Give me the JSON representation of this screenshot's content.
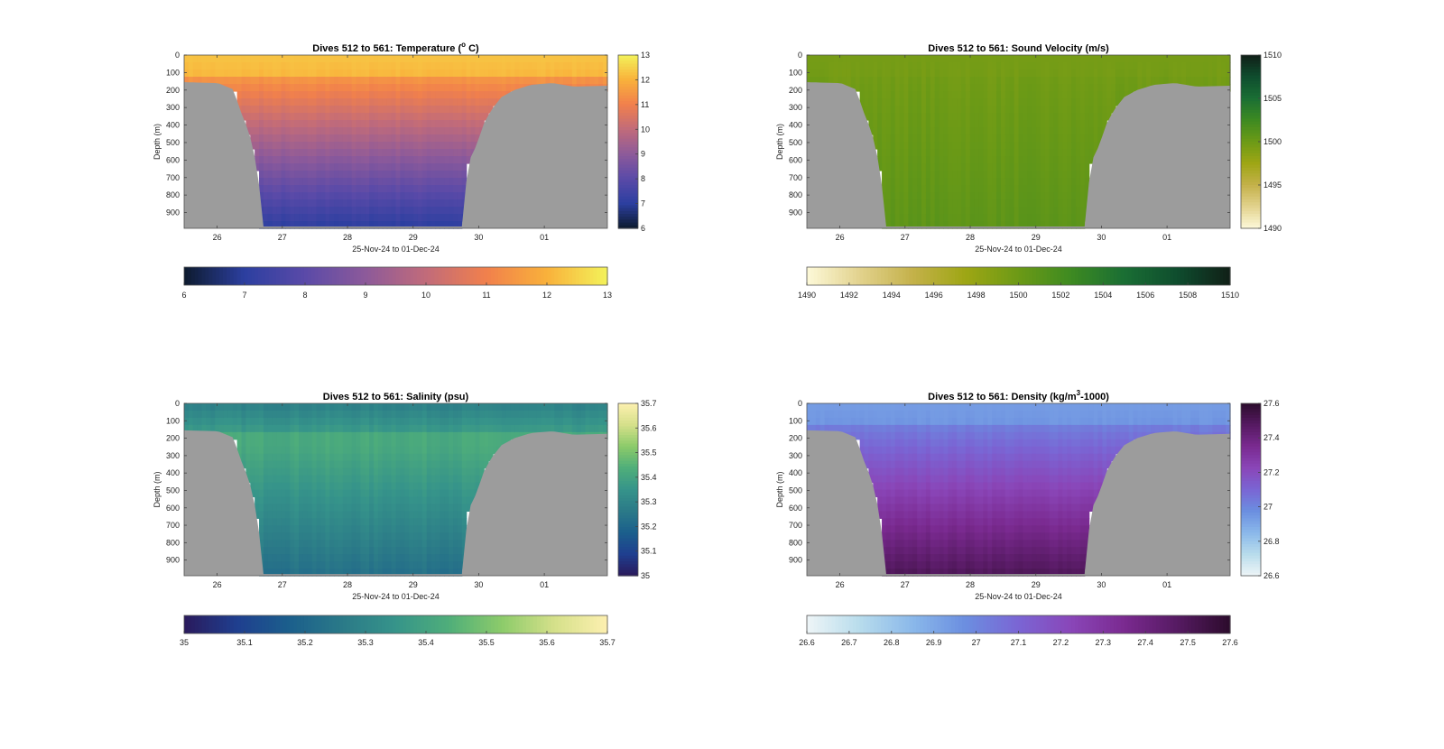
{
  "chart_data": [
    {
      "type": "heatmap",
      "title_prefix": "Dives 512 to 561: Temperature (",
      "title_sup": "o",
      "title_suffix": " C)",
      "xlabel": "25-Nov-24 to 01-Dec-24",
      "ylabel": "Depth (m)",
      "x_ticks": [
        "26",
        "27",
        "28",
        "29",
        "30",
        "01"
      ],
      "y_ticks": [
        "0",
        "100",
        "200",
        "300",
        "400",
        "500",
        "600",
        "700",
        "800",
        "900"
      ],
      "ylim": [
        0,
        990
      ],
      "clim": [
        6,
        13
      ],
      "right_colorbar_ticks": [
        "6",
        "7",
        "8",
        "9",
        "10",
        "11",
        "12",
        "13"
      ],
      "bottom_colorbar_ticks": [
        "6",
        "7",
        "8",
        "9",
        "10",
        "11",
        "12",
        "13"
      ],
      "surface_value": 12.3,
      "deep_value": 7.0,
      "colormap": [
        "#0d1b2e",
        "#2c3fa0",
        "#5a4aa8",
        "#8d5a9a",
        "#c16b7a",
        "#f1804c",
        "#f9b13b",
        "#f3f25a"
      ],
      "land_color": "#9c9c9c"
    },
    {
      "type": "heatmap",
      "title_prefix": "Dives 512 to 561: Sound Velocity (m/s)",
      "title_sup": "",
      "title_suffix": "",
      "xlabel": "25-Nov-24 to 01-Dec-24",
      "ylabel": "Depth (m)",
      "x_ticks": [
        "26",
        "27",
        "28",
        "29",
        "30",
        "01"
      ],
      "y_ticks": [
        "0",
        "100",
        "200",
        "300",
        "400",
        "500",
        "600",
        "700",
        "800",
        "900"
      ],
      "ylim": [
        0,
        990
      ],
      "clim": [
        1490,
        1510
      ],
      "right_colorbar_ticks": [
        "1490",
        "1495",
        "1500",
        "1505",
        "1510"
      ],
      "bottom_colorbar_ticks": [
        "1490",
        "1492",
        "1494",
        "1496",
        "1498",
        "1500",
        "1502",
        "1504",
        "1506",
        "1508",
        "1510"
      ],
      "surface_value": 1499.5,
      "deep_value": 1500.8,
      "colormap": [
        "#fdf9d9",
        "#e2d28d",
        "#c4b14a",
        "#9ea614",
        "#6c9a16",
        "#3d8a21",
        "#1a6e34",
        "#0f4d2e",
        "#101f17"
      ],
      "land_color": "#9c9c9c"
    },
    {
      "type": "heatmap",
      "title_prefix": "Dives 512 to 561: Salinity (psu)",
      "title_sup": "",
      "title_suffix": "",
      "xlabel": "25-Nov-24 to 01-Dec-24",
      "ylabel": "Depth (m)",
      "x_ticks": [
        "26",
        "27",
        "28",
        "29",
        "30",
        "01"
      ],
      "y_ticks": [
        "0",
        "100",
        "200",
        "300",
        "400",
        "500",
        "600",
        "700",
        "800",
        "900"
      ],
      "ylim": [
        0,
        990
      ],
      "clim": [
        35,
        35.7
      ],
      "right_colorbar_ticks": [
        "35",
        "35.1",
        "35.2",
        "35.3",
        "35.4",
        "35.5",
        "35.6",
        "35.7"
      ],
      "bottom_colorbar_ticks": [
        "35",
        "35.1",
        "35.2",
        "35.3",
        "35.4",
        "35.5",
        "35.6",
        "35.7"
      ],
      "surface_value": 35.28,
      "deep_value": 35.24,
      "mid_value": 35.42,
      "colormap": [
        "#2a1a5c",
        "#1f3f8f",
        "#1b5f8c",
        "#2b7a88",
        "#36948a",
        "#4fae7a",
        "#8ccb6a",
        "#d5e08a",
        "#fdf0b0"
      ],
      "land_color": "#9c9c9c"
    },
    {
      "type": "heatmap",
      "title_prefix": "Dives 512 to 561: Density (kg/m",
      "title_sup": "3",
      "title_suffix": "-1000)",
      "xlabel": "25-Nov-24 to 01-Dec-24",
      "ylabel": "Depth (m)",
      "x_ticks": [
        "26",
        "27",
        "28",
        "29",
        "30",
        "01"
      ],
      "y_ticks": [
        "0",
        "100",
        "200",
        "300",
        "400",
        "500",
        "600",
        "700",
        "800",
        "900"
      ],
      "ylim": [
        0,
        990
      ],
      "clim": [
        26.6,
        27.6
      ],
      "right_colorbar_ticks": [
        "26.6",
        "26.8",
        "27",
        "27.2",
        "27.4",
        "27.6"
      ],
      "bottom_colorbar_ticks": [
        "26.6",
        "26.7",
        "26.8",
        "26.9",
        "27",
        "27.1",
        "27.2",
        "27.3",
        "27.4",
        "27.5",
        "27.6"
      ],
      "surface_value": 26.93,
      "deep_value": 27.5,
      "colormap": [
        "#eef5f7",
        "#b8dcec",
        "#8ab8ea",
        "#6b8ee0",
        "#7a65d4",
        "#8a46b8",
        "#7a2a90",
        "#561a62",
        "#2c0c2c"
      ],
      "land_color": "#9c9c9c"
    }
  ]
}
